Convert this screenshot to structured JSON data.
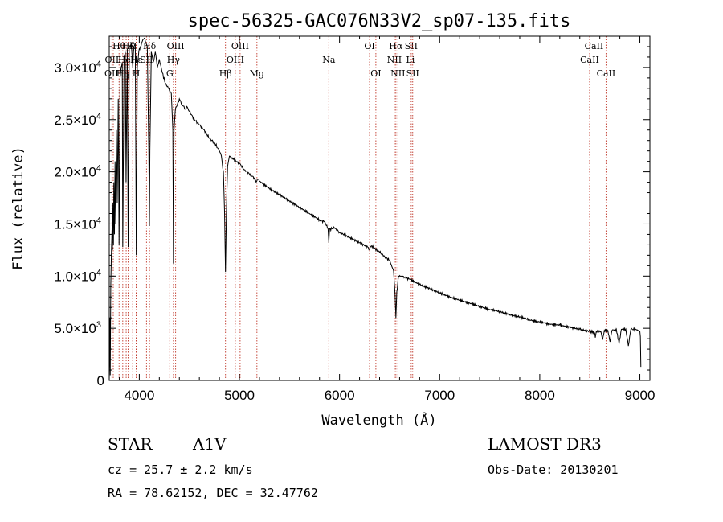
{
  "chart_data": {
    "type": "line",
    "title": "spec-56325-GAC076N33V2_sp07-135.fits",
    "xlabel": "Wavelength (Å)",
    "ylabel": "Flux (relative)",
    "xlim": [
      3700,
      9100
    ],
    "ylim": [
      0,
      33000
    ],
    "x_ticks": [
      4000,
      5000,
      6000,
      7000,
      8000,
      9000
    ],
    "x_tick_labels": [
      "4000",
      "5000",
      "6000",
      "7000",
      "8000",
      "9000"
    ],
    "y_ticks": [
      0,
      5000,
      10000,
      15000,
      20000,
      25000,
      30000
    ],
    "y_tick_labels": [
      {
        "m": "0",
        "e": ""
      },
      {
        "m": "5.0×10",
        "e": "3"
      },
      {
        "m": "1.0×10",
        "e": "4"
      },
      {
        "m": "1.5×10",
        "e": "4"
      },
      {
        "m": "2.0×10",
        "e": "4"
      },
      {
        "m": "2.5×10",
        "e": "4"
      },
      {
        "m": "3.0×10",
        "e": "4"
      }
    ],
    "series": [
      {
        "name": "spectrum",
        "color": "#000000",
        "points": [
          [
            3700,
            0
          ],
          [
            3705,
            6000
          ],
          [
            3710,
            500
          ],
          [
            3715,
            9000
          ],
          [
            3722,
            12500
          ],
          [
            3728,
            14500
          ],
          [
            3732,
            12500
          ],
          [
            3735,
            17000
          ],
          [
            3742,
            13000
          ],
          [
            3746,
            19000
          ],
          [
            3752,
            14000
          ],
          [
            3758,
            21000
          ],
          [
            3765,
            15000
          ],
          [
            3771,
            24000
          ],
          [
            3780,
            17000
          ],
          [
            3790,
            27000
          ],
          [
            3798,
            13000
          ],
          [
            3808,
            29000
          ],
          [
            3818,
            30000
          ],
          [
            3830,
            30500
          ],
          [
            3835,
            12800
          ],
          [
            3848,
            31000
          ],
          [
            3860,
            31500
          ],
          [
            3868,
            19000
          ],
          [
            3880,
            31800
          ],
          [
            3889,
            12800
          ],
          [
            3900,
            32000
          ],
          [
            3920,
            32300
          ],
          [
            3935,
            30000
          ],
          [
            3945,
            32000
          ],
          [
            3960,
            32300
          ],
          [
            3970,
            12000
          ],
          [
            3980,
            30000
          ],
          [
            3995,
            31500
          ],
          [
            4010,
            32000
          ],
          [
            4030,
            32500
          ],
          [
            4050,
            32800
          ],
          [
            4080,
            32000
          ],
          [
            4095,
            22000
          ],
          [
            4101,
            14800
          ],
          [
            4106,
            22000
          ],
          [
            4120,
            31500
          ],
          [
            4140,
            30500
          ],
          [
            4160,
            31500
          ],
          [
            4180,
            30000
          ],
          [
            4200,
            30800
          ],
          [
            4230,
            29500
          ],
          [
            4260,
            28500
          ],
          [
            4290,
            28000
          ],
          [
            4320,
            27500
          ],
          [
            4335,
            24000
          ],
          [
            4341,
            11200
          ],
          [
            4347,
            24000
          ],
          [
            4360,
            26000
          ],
          [
            4375,
            26300
          ],
          [
            4400,
            27000
          ],
          [
            4420,
            26500
          ],
          [
            4440,
            26300
          ],
          [
            4460,
            26000
          ],
          [
            4480,
            26200
          ],
          [
            4500,
            25800
          ],
          [
            4550,
            25000
          ],
          [
            4600,
            24500
          ],
          [
            4650,
            24000
          ],
          [
            4700,
            23200
          ],
          [
            4750,
            22800
          ],
          [
            4800,
            22000
          ],
          [
            4820,
            21500
          ],
          [
            4840,
            20000
          ],
          [
            4852,
            16000
          ],
          [
            4861,
            10400
          ],
          [
            4870,
            16000
          ],
          [
            4882,
            20500
          ],
          [
            4900,
            21500
          ],
          [
            4940,
            21200
          ],
          [
            5000,
            20800
          ],
          [
            5050,
            20200
          ],
          [
            5100,
            19800
          ],
          [
            5150,
            19400
          ],
          [
            5167,
            19000
          ],
          [
            5180,
            19300
          ],
          [
            5200,
            19100
          ],
          [
            5300,
            18400
          ],
          [
            5400,
            17800
          ],
          [
            5500,
            17200
          ],
          [
            5600,
            16600
          ],
          [
            5700,
            16000
          ],
          [
            5800,
            15400
          ],
          [
            5850,
            15200
          ],
          [
            5885,
            14600
          ],
          [
            5893,
            13200
          ],
          [
            5900,
            14500
          ],
          [
            5950,
            14600
          ],
          [
            6000,
            14200
          ],
          [
            6100,
            13700
          ],
          [
            6200,
            13200
          ],
          [
            6280,
            12800
          ],
          [
            6300,
            12600
          ],
          [
            6320,
            12900
          ],
          [
            6400,
            12300
          ],
          [
            6450,
            11900
          ],
          [
            6500,
            11500
          ],
          [
            6540,
            10500
          ],
          [
            6555,
            8200
          ],
          [
            6563,
            6000
          ],
          [
            6572,
            8500
          ],
          [
            6590,
            10000
          ],
          [
            6620,
            10000
          ],
          [
            6700,
            9700
          ],
          [
            6800,
            9200
          ],
          [
            6900,
            8800
          ],
          [
            7000,
            8400
          ],
          [
            7100,
            8000
          ],
          [
            7200,
            7700
          ],
          [
            7300,
            7400
          ],
          [
            7400,
            7100
          ],
          [
            7500,
            6800
          ],
          [
            7600,
            6600
          ],
          [
            7700,
            6300
          ],
          [
            7800,
            6100
          ],
          [
            7900,
            5800
          ],
          [
            8000,
            5600
          ],
          [
            8100,
            5400
          ],
          [
            8200,
            5300
          ],
          [
            8300,
            5100
          ],
          [
            8400,
            4900
          ],
          [
            8500,
            4700
          ],
          [
            8545,
            4600
          ],
          [
            8555,
            4100
          ],
          [
            8565,
            4700
          ],
          [
            8610,
            4700
          ],
          [
            8628,
            3900
          ],
          [
            8645,
            4800
          ],
          [
            8680,
            4800
          ],
          [
            8702,
            3700
          ],
          [
            8722,
            4800
          ],
          [
            8765,
            4900
          ],
          [
            8792,
            3500
          ],
          [
            8815,
            4900
          ],
          [
            8860,
            4900
          ],
          [
            8885,
            3300
          ],
          [
            8910,
            4900
          ],
          [
            8960,
            4900
          ],
          [
            9000,
            4700
          ],
          [
            9005,
            4200
          ],
          [
            9010,
            1300
          ]
        ]
      }
    ],
    "spectral_lines": [
      {
        "wave": 3727,
        "label": "OII",
        "row": 1
      },
      {
        "wave": 3740,
        "label": "OIII",
        "row": 2
      },
      {
        "wave": 3798,
        "label": "Hθ",
        "row": 0
      },
      {
        "wave": 3835,
        "label": "Hη",
        "row": 2
      },
      {
        "wave": 3869,
        "label": "HeI",
        "row": 1
      },
      {
        "wave": 3889,
        "label": "Hζ",
        "row": 0
      },
      {
        "wave": 3934,
        "label": "K",
        "row": 0
      },
      {
        "wave": 3969,
        "label": "H",
        "row": 2
      },
      {
        "wave": 3970,
        "label": "Hε",
        "row": 1
      },
      {
        "wave": 4072,
        "label": "SII",
        "row": 1
      },
      {
        "wave": 4102,
        "label": "Hδ",
        "row": 0
      },
      {
        "wave": 4304,
        "label": "G",
        "row": 2
      },
      {
        "wave": 4341,
        "label": "Hγ",
        "row": 1
      },
      {
        "wave": 4363,
        "label": "OIII",
        "row": 0
      },
      {
        "wave": 4861,
        "label": "Hβ",
        "row": 2
      },
      {
        "wave": 4959,
        "label": "OIII",
        "row": 1
      },
      {
        "wave": 5007,
        "label": "OIII",
        "row": 0
      },
      {
        "wave": 5175,
        "label": "Mg",
        "row": 2
      },
      {
        "wave": 5893,
        "label": "Na",
        "row": 1
      },
      {
        "wave": 6300,
        "label": "OI",
        "row": 0
      },
      {
        "wave": 6363,
        "label": "OI",
        "row": 2
      },
      {
        "wave": 6548,
        "label": "NII",
        "row": 1
      },
      {
        "wave": 6563,
        "label": "Hα",
        "row": 0
      },
      {
        "wave": 6583,
        "label": "NII",
        "row": 2
      },
      {
        "wave": 6708,
        "label": "Li",
        "row": 1
      },
      {
        "wave": 6716,
        "label": "SII",
        "row": 0
      },
      {
        "wave": 6731,
        "label": "SII",
        "row": 2
      },
      {
        "wave": 8498,
        "label": "CaII",
        "row": 1
      },
      {
        "wave": 8542,
        "label": "CaII",
        "row": 0
      },
      {
        "wave": 8662,
        "label": "CaII",
        "row": 2
      }
    ],
    "line_color": "#c0392b"
  },
  "info": {
    "object_class": "STAR",
    "subclass": "A1V",
    "survey": "LAMOST DR3",
    "cz": "cz = 25.7 ± 2.2 km/s",
    "obs_date": "Obs-Date: 20130201",
    "coords": "RA =  78.62152, DEC =  32.47762"
  }
}
